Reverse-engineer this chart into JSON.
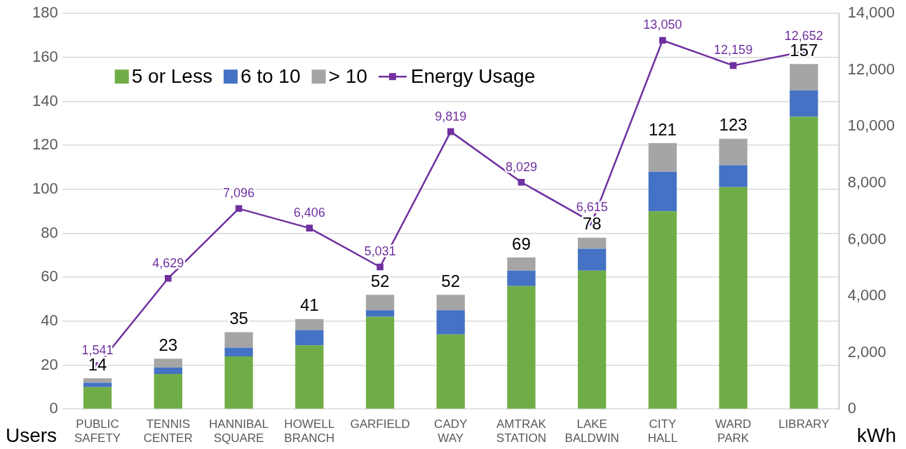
{
  "chart_data": {
    "type": "bar",
    "stacked": true,
    "ylabel": "Users",
    "y2label": "kWh",
    "categories": [
      "PUBLIC SAFETY",
      "TENNIS CENTER",
      "HANNIBAL SQUARE",
      "HOWELL BRANCH",
      "GARFIELD",
      "CADY WAY",
      "AMTRAK STATION",
      "LAKE BALDWIN",
      "CITY HALL",
      "WARD PARK",
      "LIBRARY"
    ],
    "series": [
      {
        "name": "5 or Less",
        "color": "#70ad47",
        "values": [
          10,
          16,
          24,
          29,
          42,
          34,
          56,
          63,
          90,
          101,
          133
        ]
      },
      {
        "name": "6 to 10",
        "color": "#4472c4",
        "values": [
          2,
          3,
          4,
          7,
          3,
          11,
          7,
          10,
          18,
          10,
          12
        ]
      },
      {
        "name": "> 10",
        "color": "#a5a5a5",
        "values": [
          2,
          4,
          7,
          5,
          7,
          7,
          6,
          5,
          13,
          12,
          12
        ]
      },
      {
        "name": "Energy Usage",
        "type": "line",
        "axis": "y2",
        "color": "#7030a0",
        "marker": "square",
        "values": [
          1541,
          4629,
          7096,
          6406,
          5031,
          9819,
          8029,
          6615,
          13050,
          12159,
          12652
        ],
        "value_labels": [
          "1,541",
          "4,629",
          "7,096",
          "6,406",
          "5,031",
          "9,819",
          "8,029",
          "6,615",
          "13,050",
          "12,159",
          "12,652"
        ]
      }
    ],
    "totals": [
      "14",
      "23",
      "35",
      "41",
      "52",
      "52",
      "69",
      "78",
      "121",
      "123",
      "157"
    ],
    "ylim": [
      0,
      180
    ],
    "yticks": [
      0,
      20,
      40,
      60,
      80,
      100,
      120,
      140,
      160,
      180
    ],
    "y2lim": [
      0,
      14000
    ],
    "y2ticks": [
      {
        "value": 0,
        "label": "0"
      },
      {
        "value": 2000,
        "label": "2,000"
      },
      {
        "value": 4000,
        "label": "4,000"
      },
      {
        "value": 6000,
        "label": "6,000"
      },
      {
        "value": 8000,
        "label": "8,000"
      },
      {
        "value": 10000,
        "label": "10,000"
      },
      {
        "value": 12000,
        "label": "12,000"
      },
      {
        "value": 14000,
        "label": "14,000"
      }
    ],
    "grid": "y",
    "legend": "top left"
  }
}
